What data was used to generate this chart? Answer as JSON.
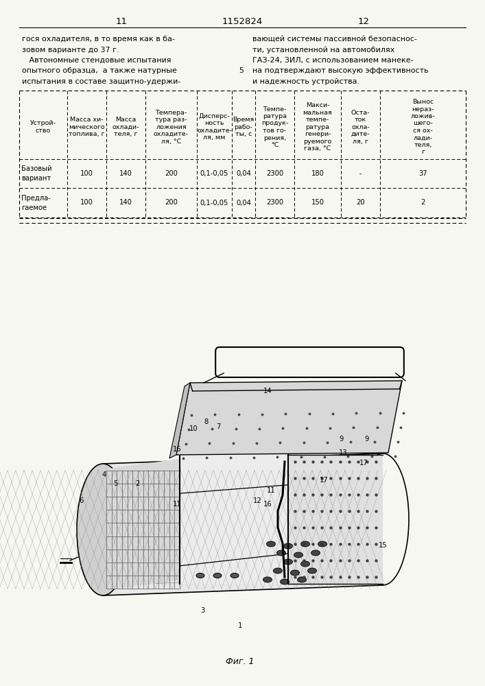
{
  "page_width": 7.07,
  "page_height": 10.0,
  "bg_color": "#f7f7f2",
  "page_number_left": "11",
  "page_number_center": "1152824",
  "page_number_right": "12",
  "text_left_col": [
    "гося охладителя, в то время как в ба-",
    "зовом варианте до 37 г.",
    "   Автономные стендовые испытания",
    "опытного образца,  а также натурные",
    "испытания в составе защитно-удержи-"
  ],
  "text_right_col": [
    "вающей системы пассивной безопаснос-",
    "ти, установленной на автомобилях",
    "ГАЗ-24, ЗИЛ, с использованием манеке-",
    "на подтверждают высокую эффективность",
    "и надежность устройства."
  ],
  "line_number": "5",
  "row1_label_lines": [
    "Базовый",
    "вариант"
  ],
  "row1_values": [
    "100",
    "140",
    "200",
    "0,1-0,05",
    "0,04",
    "2300",
    "180",
    "-",
    "37"
  ],
  "row2_label_lines": [
    "Предла-",
    "гаемое"
  ],
  "row2_values": [
    "100",
    "140",
    "200",
    "0,1-0,05",
    "0,04",
    "2300",
    "150",
    "20",
    "2"
  ],
  "fig_caption": "Фиг. 1",
  "font_size_body": 8.0,
  "font_size_table": 7.2,
  "font_size_pagenumber": 9.5
}
